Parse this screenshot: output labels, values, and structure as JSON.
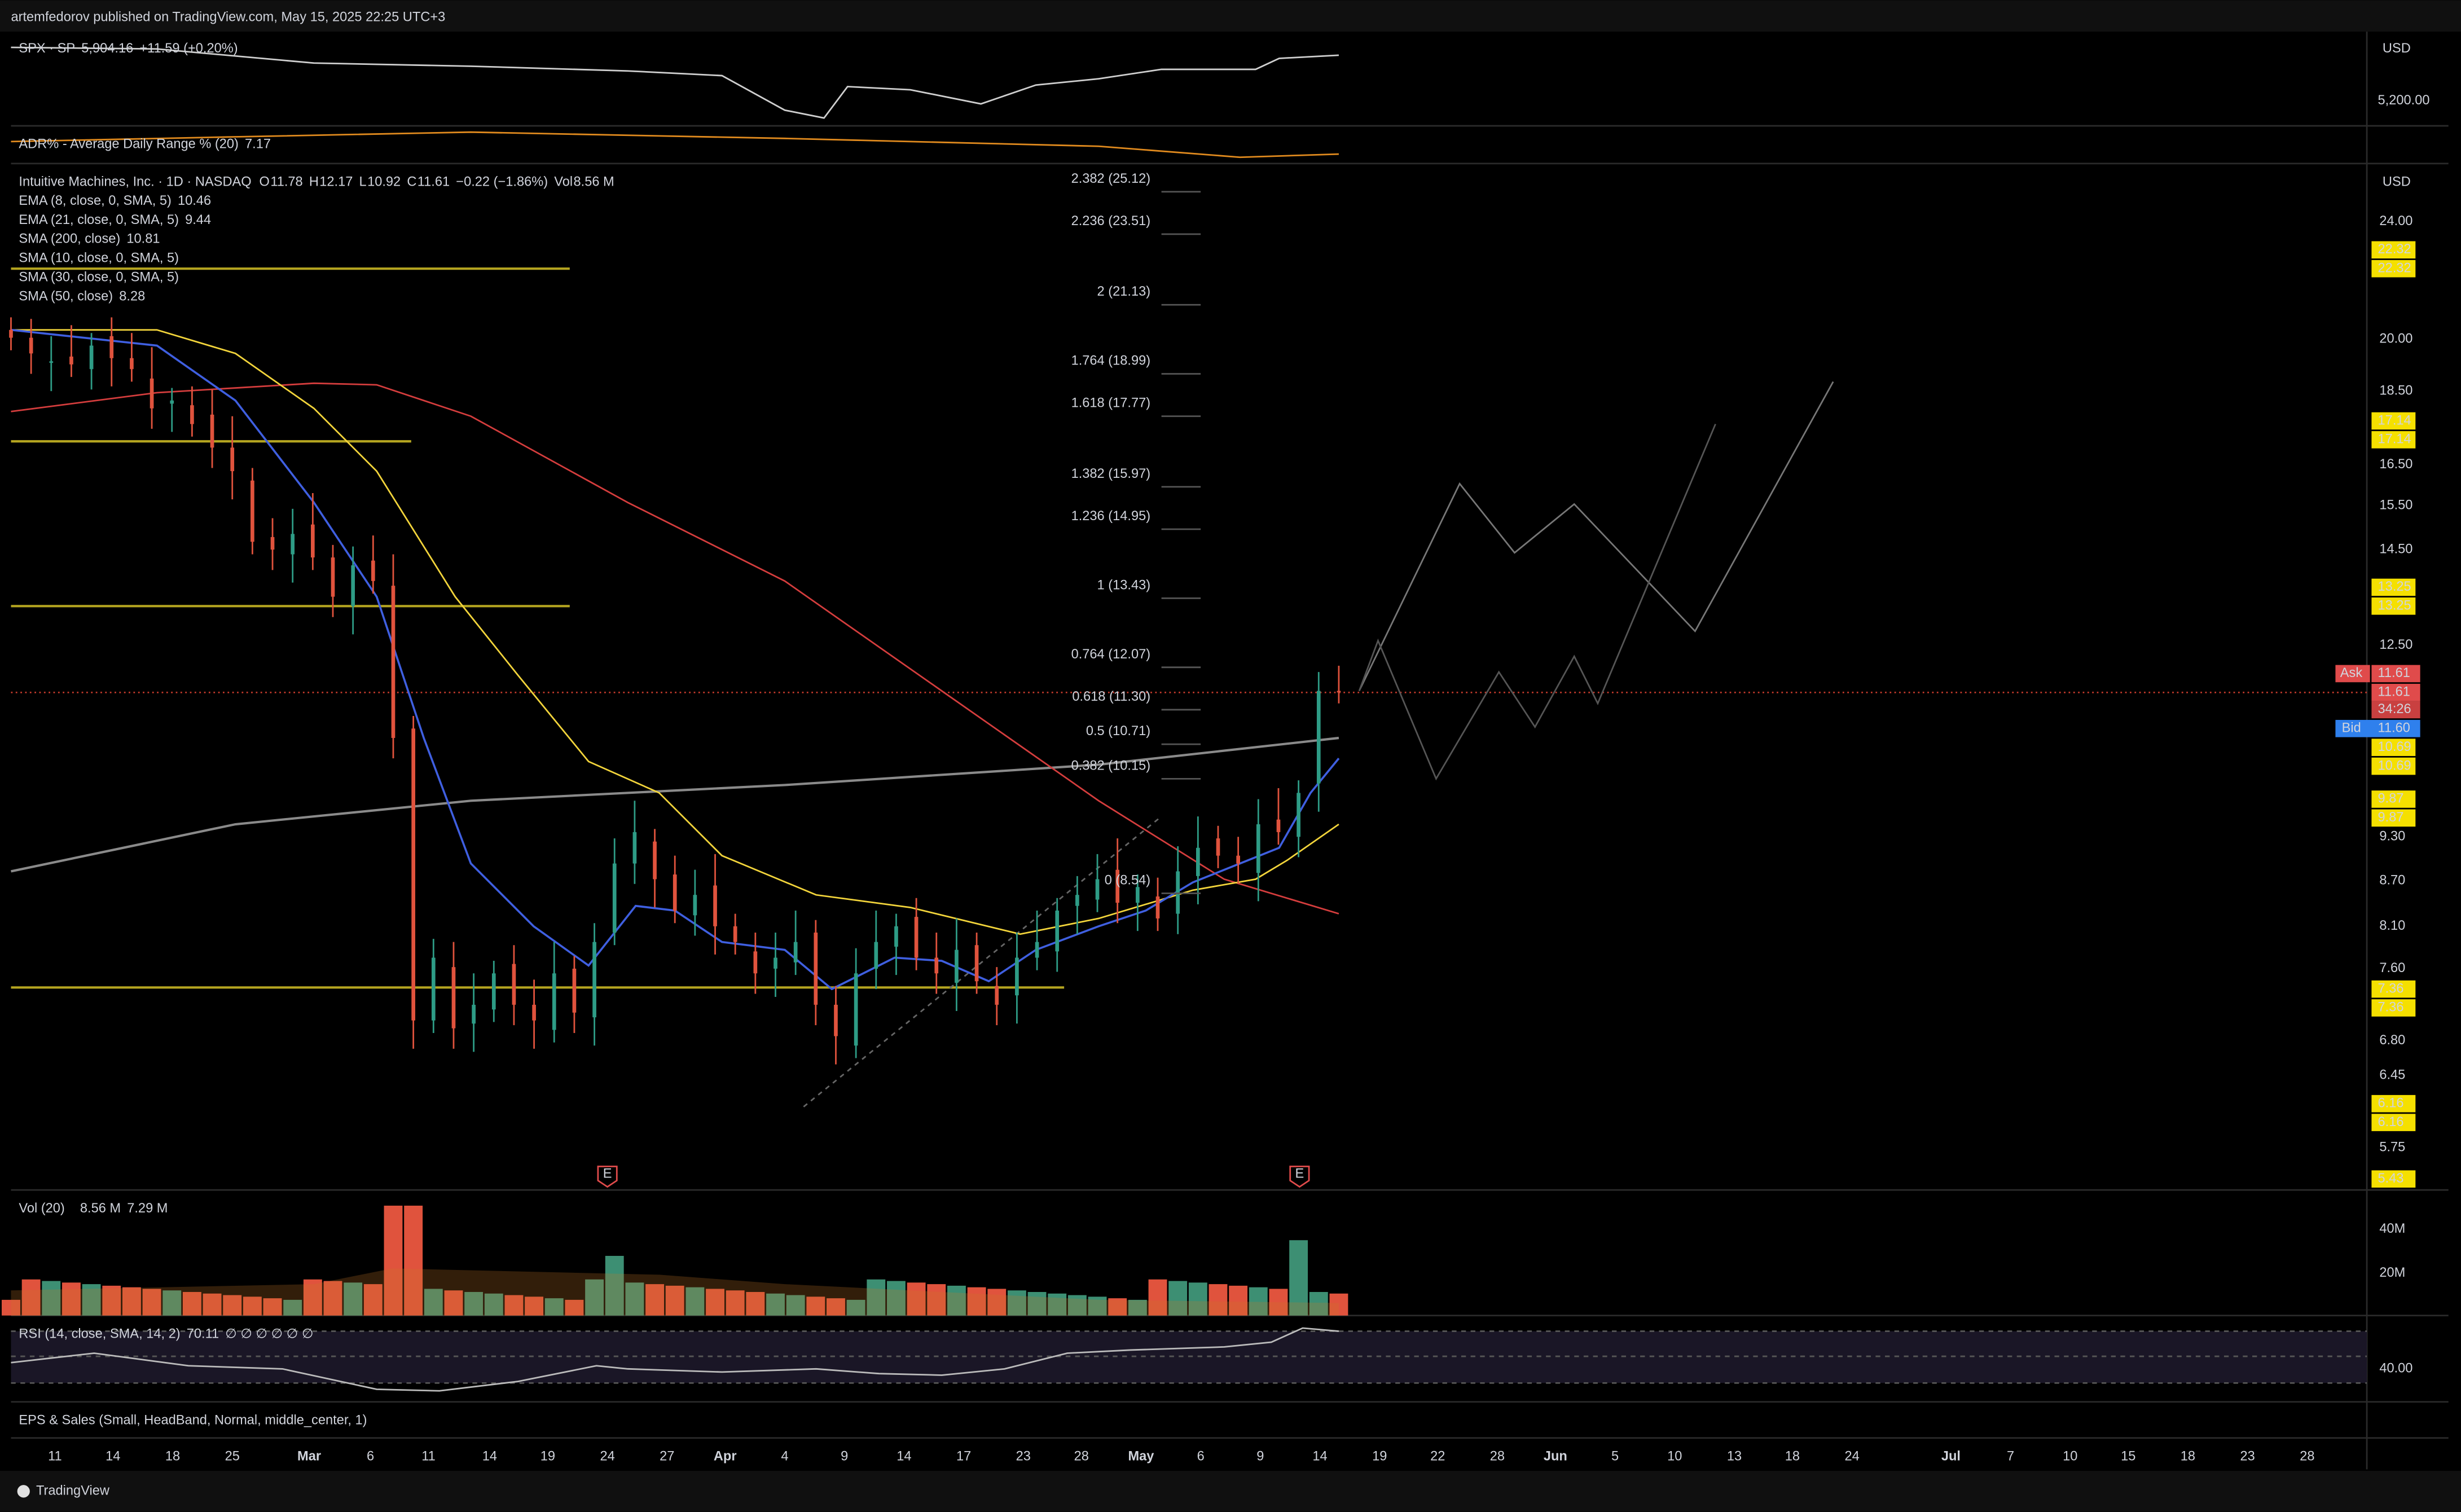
{
  "header": "artemfedorov published on TradingView.com, May 15, 2025 22:25 UTC+3",
  "spx": {
    "symbol": "SPX · SP",
    "price": "5,904.16",
    "change": "+11.59 (+0.20%)",
    "currency": "USD",
    "tick": "5,200.00"
  },
  "adr": {
    "name": "ADR% - Average Daily Range % (20)",
    "value": "7.17"
  },
  "main": {
    "title": "Intuitive Machines, Inc. · 1D · NASDAQ",
    "ohlc": [
      {
        "key": "O",
        "value": "11.78"
      },
      {
        "key": "H",
        "value": "12.17"
      },
      {
        "key": "L",
        "value": "10.92"
      },
      {
        "key": "C",
        "value": "11.61"
      }
    ],
    "change": "−0.22 (−1.86%)",
    "volume": {
      "key": "Vol",
      "value": "8.56 M"
    },
    "currency": "USD",
    "indicators": [
      {
        "name": "EMA (8, close, 0, SMA, 5)",
        "value": "10.46",
        "color": "#4f6fe8"
      },
      {
        "name": "EMA (21, close, 0, SMA, 5)",
        "value": "9.44",
        "color": "#f2d43b"
      },
      {
        "name": "SMA (200, close)",
        "value": "10.81",
        "color": "#9e9e9e"
      },
      {
        "name": "SMA (10, close, 0, SMA, 5)"
      },
      {
        "name": "SMA (30, close, 0, SMA, 5)"
      },
      {
        "name": "SMA (50, close)",
        "value": "8.28",
        "color": "#e04b4b"
      }
    ],
    "fib": [
      "2.382 (25.12)",
      "2.236 (23.51)",
      "2 (21.13)",
      "1.764 (18.99)",
      "1.618 (17.77)",
      "1.382 (15.97)",
      "1.236 (14.95)",
      "1 (13.43)",
      "0.764 (12.07)",
      "0.618 (11.30)",
      "0.5 (10.71)",
      "0.382 (10.15)",
      "0 (8.54)"
    ],
    "price_ticks": [
      "24.00",
      "20.00",
      "18.50",
      "16.50",
      "15.50",
      "14.50",
      "12.50",
      "9.30",
      "8.70",
      "8.10",
      "7.60",
      "6.80",
      "6.45",
      "5.75"
    ],
    "level_tags": [
      "22.32",
      "22.32",
      "17.14",
      "17.14",
      "13.25",
      "13.25",
      "10.69",
      "10.69",
      "9.87",
      "9.87",
      "7.36",
      "7.36",
      "6.16",
      "6.16",
      "5.43"
    ],
    "ask": {
      "label": "Ask",
      "values": [
        "11.61",
        "11.61",
        "34:26"
      ]
    },
    "bid": {
      "label": "Bid",
      "value": "11.60"
    },
    "earnings": [
      "E",
      "E"
    ]
  },
  "volume": {
    "name": "Vol (20)",
    "values": [
      "8.56 M",
      "7.29 M"
    ],
    "ticks": [
      "40M",
      "20M"
    ]
  },
  "rsi": {
    "name": "RSI (14, close, SMA, 14, 2)",
    "value": "70.11",
    "extra": "∅ ∅ ∅ ∅ ∅ ∅",
    "tick": "40.00"
  },
  "eps": "EPS & Sales (Small, HeadBand, Normal, middle_center, 1)",
  "dates": [
    "11",
    "14",
    "18",
    "25",
    "Mar",
    "6",
    "11",
    "14",
    "19",
    "24",
    "27",
    "Apr",
    "4",
    "9",
    "14",
    "17",
    "23",
    "28",
    "May",
    "6",
    "9",
    "14",
    "19",
    "22",
    "28",
    "Jun",
    "5",
    "10",
    "13",
    "18",
    "24",
    "Jul",
    "7",
    "10",
    "15",
    "18",
    "23",
    "28"
  ],
  "footer": "TradingView"
}
